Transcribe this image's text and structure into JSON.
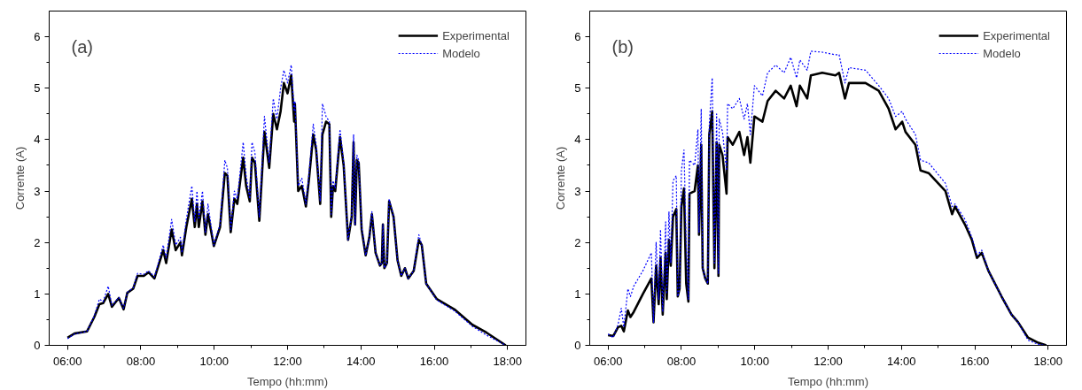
{
  "chart_data": [
    {
      "type": "line",
      "annotations": [
        "(a)"
      ],
      "xlabel": "Tempo (hh:mm)",
      "ylabel": "Corrente (A)",
      "xlim": [
        5.5,
        18.5
      ],
      "ylim": [
        0,
        6.5
      ],
      "xticks": [
        {
          "value": 6,
          "label": "06:00"
        },
        {
          "value": 8,
          "label": "08:00"
        },
        {
          "value": 10,
          "label": "10:00"
        },
        {
          "value": 12,
          "label": "12:00"
        },
        {
          "value": 14,
          "label": "14:00"
        },
        {
          "value": 16,
          "label": "16:00"
        },
        {
          "value": 18,
          "label": "18:00"
        }
      ],
      "yticks": [
        0,
        1,
        2,
        3,
        4,
        5,
        6
      ],
      "legend": "top right",
      "grid": false,
      "x": [
        6.0,
        6.19,
        6.53,
        6.73,
        6.87,
        6.97,
        7.11,
        7.21,
        7.4,
        7.53,
        7.63,
        7.79,
        7.91,
        8.08,
        8.21,
        8.37,
        8.61,
        8.69,
        8.84,
        8.95,
        9.08,
        9.12,
        9.24,
        9.39,
        9.47,
        9.53,
        9.58,
        9.68,
        9.76,
        9.83,
        9.99,
        10.16,
        10.29,
        10.36,
        10.45,
        10.55,
        10.63,
        10.79,
        10.87,
        10.97,
        11.03,
        11.11,
        11.23,
        11.37,
        11.5,
        11.61,
        11.71,
        11.81,
        11.9,
        12.0,
        12.1,
        12.18,
        12.2,
        12.29,
        12.39,
        12.5,
        12.58,
        12.7,
        12.78,
        12.89,
        12.95,
        13.05,
        13.14,
        13.19,
        13.24,
        13.3,
        13.43,
        13.53,
        13.65,
        13.75,
        13.8,
        13.84,
        13.89,
        13.94,
        14.02,
        14.13,
        14.23,
        14.3,
        14.4,
        14.52,
        14.57,
        14.6,
        14.64,
        14.71,
        14.77,
        14.89,
        15.0,
        15.1,
        15.2,
        15.29,
        15.44,
        15.58,
        15.66,
        15.78,
        16.07,
        16.55,
        17.04,
        17.42,
        17.95
      ],
      "series": [
        {
          "name": "Experimental",
          "color": "#000000",
          "line_style": "solid",
          "values": [
            0.15,
            0.23,
            0.27,
            0.55,
            0.8,
            0.82,
            1.0,
            0.75,
            0.92,
            0.7,
            1.02,
            1.1,
            1.35,
            1.35,
            1.42,
            1.3,
            1.85,
            1.6,
            2.25,
            1.85,
            2.0,
            1.75,
            2.3,
            2.85,
            2.3,
            2.75,
            2.3,
            2.8,
            2.15,
            2.55,
            1.93,
            2.3,
            3.35,
            3.3,
            2.2,
            2.85,
            2.75,
            3.65,
            3.1,
            2.8,
            3.65,
            3.55,
            2.42,
            4.15,
            3.45,
            4.5,
            4.2,
            4.55,
            5.1,
            4.9,
            5.25,
            4.35,
            4.7,
            3.0,
            3.1,
            2.7,
            3.2,
            4.1,
            3.8,
            2.75,
            4.1,
            4.35,
            4.3,
            2.5,
            3.1,
            3.0,
            4.05,
            3.5,
            2.05,
            2.5,
            3.95,
            2.35,
            3.6,
            3.55,
            2.25,
            1.75,
            2.1,
            2.55,
            1.8,
            1.55,
            1.6,
            2.35,
            1.5,
            1.6,
            2.8,
            2.5,
            1.65,
            1.35,
            1.5,
            1.3,
            1.45,
            2.05,
            1.95,
            1.2,
            0.9,
            0.7,
            0.4,
            0.25,
            0.0
          ]
        },
        {
          "name": "Modelo",
          "color": "#0000ff",
          "line_style": "dotted",
          "values": [
            0.13,
            0.22,
            0.27,
            0.57,
            0.9,
            0.85,
            1.15,
            0.78,
            0.93,
            0.72,
            1.03,
            1.12,
            1.4,
            1.38,
            1.45,
            1.33,
            1.95,
            1.7,
            2.45,
            1.95,
            2.1,
            1.8,
            2.45,
            3.1,
            2.4,
            3.0,
            2.45,
            3.0,
            2.2,
            2.75,
            1.95,
            2.35,
            3.6,
            3.45,
            2.25,
            3.0,
            2.85,
            3.95,
            3.3,
            2.85,
            3.95,
            3.75,
            2.5,
            4.45,
            3.55,
            4.8,
            4.4,
            5.0,
            5.35,
            5.1,
            5.45,
            4.55,
            4.75,
            3.1,
            3.25,
            2.75,
            3.3,
            4.3,
            3.9,
            2.8,
            4.7,
            4.45,
            4.35,
            2.55,
            3.2,
            3.05,
            4.2,
            3.55,
            2.05,
            2.55,
            4.1,
            2.35,
            3.7,
            3.6,
            2.3,
            1.75,
            2.1,
            2.6,
            1.8,
            1.55,
            1.6,
            2.35,
            1.5,
            1.6,
            2.85,
            2.5,
            1.65,
            1.35,
            1.5,
            1.3,
            1.45,
            2.15,
            1.95,
            1.2,
            0.88,
            0.67,
            0.37,
            0.2,
            0.0
          ]
        }
      ]
    },
    {
      "type": "line",
      "annotations": [
        "(b)"
      ],
      "xlabel": "Tempo (hh:mm)",
      "ylabel": "Corrente (A)",
      "xlim": [
        5.5,
        18.5
      ],
      "ylim": [
        0,
        6.5
      ],
      "xticks": [
        {
          "value": 6,
          "label": "06:00"
        },
        {
          "value": 8,
          "label": "08:00"
        },
        {
          "value": 10,
          "label": "10:00"
        },
        {
          "value": 12,
          "label": "12:00"
        },
        {
          "value": 14,
          "label": "14:00"
        },
        {
          "value": 16,
          "label": "16:00"
        },
        {
          "value": 18,
          "label": "18:00"
        }
      ],
      "yticks": [
        0,
        1,
        2,
        3,
        4,
        5,
        6
      ],
      "legend": "top right",
      "grid": false,
      "x": [
        6.0,
        6.14,
        6.27,
        6.36,
        6.43,
        6.54,
        6.61,
        6.7,
        6.95,
        7.18,
        7.24,
        7.31,
        7.38,
        7.43,
        7.49,
        7.57,
        7.6,
        7.66,
        7.71,
        7.77,
        7.86,
        7.9,
        7.95,
        8.0,
        8.07,
        8.13,
        8.19,
        8.22,
        8.36,
        8.45,
        8.48,
        8.54,
        8.58,
        8.65,
        8.72,
        8.76,
        8.84,
        8.9,
        8.96,
        9.01,
        9.03,
        9.12,
        9.23,
        9.26,
        9.4,
        9.58,
        9.71,
        9.8,
        9.88,
        9.99,
        10.21,
        10.35,
        10.57,
        10.8,
        10.98,
        11.14,
        11.23,
        11.43,
        11.53,
        11.84,
        12.2,
        12.3,
        12.46,
        12.57,
        13.02,
        13.38,
        13.65,
        13.84,
        14.02,
        14.11,
        14.38,
        14.52,
        14.74,
        15.2,
        15.38,
        15.46,
        15.73,
        15.92,
        16.06,
        16.19,
        16.37,
        16.73,
        17.0,
        17.18,
        17.45,
        17.73,
        17.95
      ],
      "series": [
        {
          "name": "Experimental",
          "color": "#000000",
          "line_style": "solid",
          "values": [
            0.2,
            0.18,
            0.35,
            0.38,
            0.27,
            0.68,
            0.55,
            0.65,
            1.0,
            1.3,
            0.45,
            1.55,
            0.8,
            1.7,
            0.6,
            1.8,
            0.9,
            2.05,
            1.55,
            2.5,
            2.65,
            0.95,
            1.1,
            2.7,
            3.05,
            1.2,
            0.85,
            2.95,
            3.0,
            3.5,
            2.15,
            3.9,
            1.5,
            1.3,
            1.2,
            4.1,
            4.55,
            1.5,
            3.95,
            1.35,
            3.9,
            3.7,
            2.95,
            4.05,
            3.9,
            4.15,
            3.7,
            4.05,
            3.55,
            4.45,
            4.35,
            4.75,
            4.95,
            4.8,
            5.05,
            4.65,
            5.05,
            4.8,
            5.25,
            5.3,
            5.25,
            5.3,
            4.8,
            5.1,
            5.1,
            4.95,
            4.6,
            4.2,
            4.35,
            4.15,
            3.9,
            3.4,
            3.35,
            3.0,
            2.55,
            2.7,
            2.35,
            2.05,
            1.7,
            1.8,
            1.45,
            0.95,
            0.6,
            0.45,
            0.15,
            0.05,
            0.0
          ]
        },
        {
          "name": "Modelo",
          "color": "#0000ff",
          "line_style": "dotted",
          "values": [
            0.22,
            0.15,
            0.4,
            0.72,
            0.35,
            1.1,
            0.95,
            1.15,
            1.45,
            1.8,
            0.45,
            2.0,
            0.9,
            2.25,
            0.65,
            2.4,
            1.0,
            2.6,
            1.6,
            3.2,
            3.3,
            0.95,
            1.1,
            3.4,
            3.8,
            2.0,
            0.9,
            3.6,
            3.5,
            4.2,
            2.2,
            4.6,
            1.5,
            1.3,
            1.2,
            4.3,
            5.2,
            1.6,
            4.5,
            1.4,
            4.4,
            4.15,
            3.4,
            4.7,
            4.6,
            4.8,
            4.4,
            4.7,
            4.1,
            5.05,
            4.85,
            5.3,
            5.45,
            5.3,
            5.6,
            5.2,
            5.55,
            5.35,
            5.72,
            5.7,
            5.65,
            5.65,
            5.1,
            5.4,
            5.35,
            5.05,
            4.8,
            4.45,
            4.55,
            4.4,
            4.1,
            3.6,
            3.55,
            3.15,
            2.7,
            2.75,
            2.45,
            2.1,
            1.75,
            1.85,
            1.45,
            0.95,
            0.6,
            0.45,
            0.1,
            0.02,
            0.0
          ]
        }
      ]
    }
  ]
}
